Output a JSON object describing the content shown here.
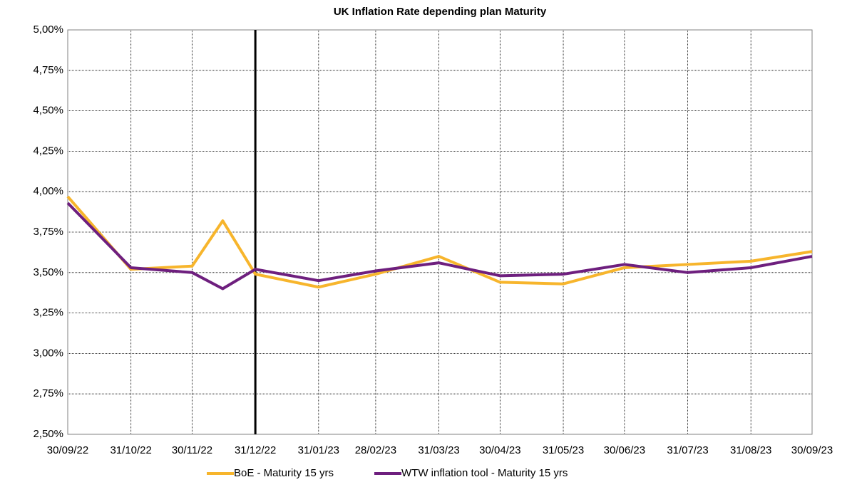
{
  "chart_data": {
    "type": "line",
    "title": "UK Inflation Rate depending plan Maturity",
    "x": [
      "30/09/22",
      "31/10/22",
      "30/11/22",
      "15/12/22",
      "31/12/22",
      "31/01/23",
      "28/02/23",
      "31/03/23",
      "30/04/23",
      "31/05/23",
      "30/06/23",
      "31/07/23",
      "31/08/23",
      "30/09/23"
    ],
    "series": [
      {
        "name": "BoE - Maturity 15 yrs",
        "color": "#f7b52c",
        "values": [
          3.97,
          3.52,
          3.54,
          3.82,
          3.49,
          3.41,
          3.49,
          3.6,
          3.44,
          3.43,
          3.53,
          3.55,
          3.57,
          3.63
        ]
      },
      {
        "name": "WTW inflation tool - Maturity 15 yrs",
        "color": "#6e1f7e",
        "values": [
          3.93,
          3.53,
          3.5,
          3.4,
          3.52,
          3.45,
          3.51,
          3.56,
          3.48,
          3.49,
          3.55,
          3.5,
          3.53,
          3.6
        ]
      }
    ],
    "xlim": [
      "30/09/22",
      "30/09/23"
    ],
    "xticks": [
      "30/09/22",
      "31/10/22",
      "30/11/22",
      "31/12/22",
      "31/01/23",
      "28/02/23",
      "31/03/23",
      "30/04/23",
      "31/05/23",
      "30/06/23",
      "31/07/23",
      "31/08/23",
      "30/09/23"
    ],
    "ylim": [
      2.5,
      5
    ],
    "yticks": [
      {
        "value": 2.5,
        "label": "2,50%"
      },
      {
        "value": 2.75,
        "label": "2,75%"
      },
      {
        "value": 3,
        "label": "3,00%"
      },
      {
        "value": 3.25,
        "label": "3,25%"
      },
      {
        "value": 3.5,
        "label": "3,50%"
      },
      {
        "value": 3.75,
        "label": "3,75%"
      },
      {
        "value": 4,
        "label": "4,00%"
      },
      {
        "value": 4.25,
        "label": "4,25%"
      },
      {
        "value": 4.5,
        "label": "4,50%"
      },
      {
        "value": 4.75,
        "label": "4,75%"
      },
      {
        "value": 5,
        "label": "5,00%"
      }
    ],
    "vline": "31/12/22",
    "grid": true,
    "legend": "bottom"
  }
}
